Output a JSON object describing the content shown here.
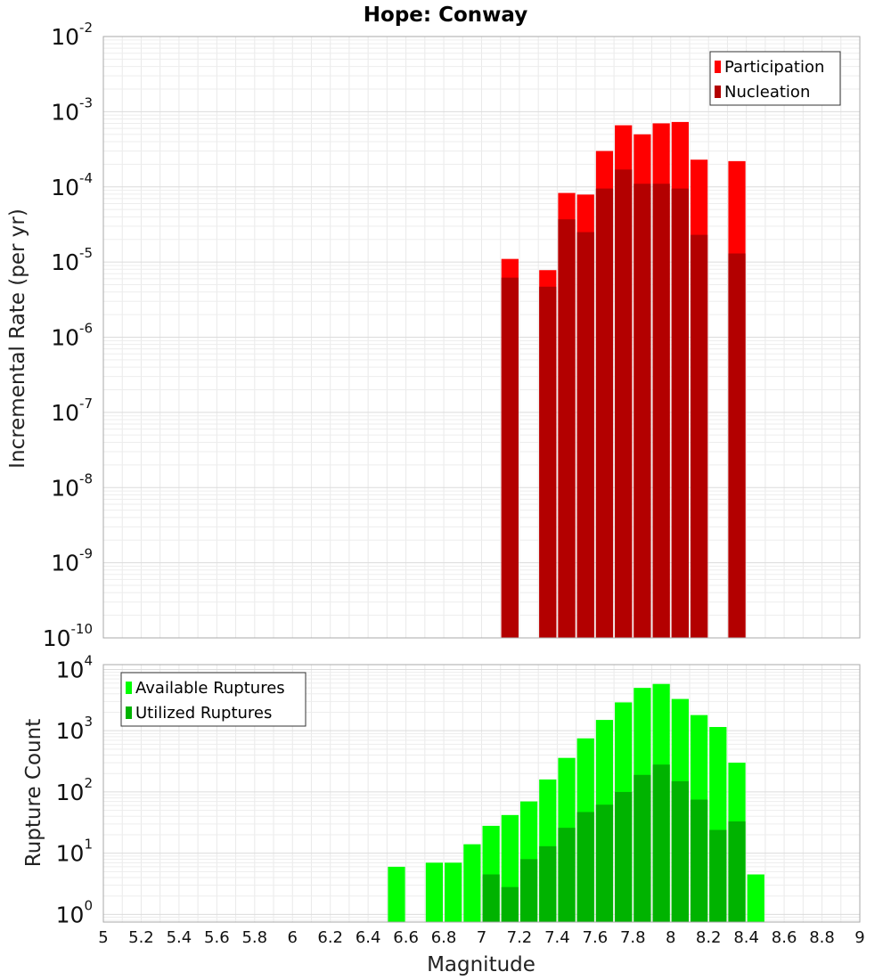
{
  "chart_data": [
    {
      "type": "bar",
      "title": "Hope: Conway",
      "ylabel": "Incremental Rate (per yr)",
      "yscale": "log",
      "ylim": [
        1e-10,
        0.01
      ],
      "xlim": [
        5,
        9
      ],
      "grid": true,
      "legend_position": "top-right",
      "bar_width": 0.1,
      "y_ticks": [
        {
          "base": "10",
          "exp": "-10",
          "value": 1e-10
        },
        {
          "base": "10",
          "exp": "-9",
          "value": 1e-09
        },
        {
          "base": "10",
          "exp": "-8",
          "value": 1e-08
        },
        {
          "base": "10",
          "exp": "-7",
          "value": 1e-07
        },
        {
          "base": "10",
          "exp": "-6",
          "value": 1e-06
        },
        {
          "base": "10",
          "exp": "-5",
          "value": 1e-05
        },
        {
          "base": "10",
          "exp": "-4",
          "value": 0.0001
        },
        {
          "base": "10",
          "exp": "-3",
          "value": 0.001
        },
        {
          "base": "10",
          "exp": "-2",
          "value": 0.01
        }
      ],
      "series": [
        {
          "name": "Participation",
          "color": "#ff0000",
          "points": [
            {
              "x": 7.15,
              "y": 1.1e-05
            },
            {
              "x": 7.35,
              "y": 7.8e-06
            },
            {
              "x": 7.45,
              "y": 8.3e-05
            },
            {
              "x": 7.55,
              "y": 7.9e-05
            },
            {
              "x": 7.65,
              "y": 0.0003
            },
            {
              "x": 7.75,
              "y": 0.00066
            },
            {
              "x": 7.85,
              "y": 0.0005
            },
            {
              "x": 7.95,
              "y": 0.0007
            },
            {
              "x": 8.05,
              "y": 0.00073
            },
            {
              "x": 8.15,
              "y": 0.00023
            },
            {
              "x": 8.35,
              "y": 0.00022
            }
          ]
        },
        {
          "name": "Nucleation",
          "color": "#b30000",
          "points": [
            {
              "x": 7.15,
              "y": 6.2e-06
            },
            {
              "x": 7.35,
              "y": 4.7e-06
            },
            {
              "x": 7.45,
              "y": 3.7e-05
            },
            {
              "x": 7.55,
              "y": 2.5e-05
            },
            {
              "x": 7.65,
              "y": 9.5e-05
            },
            {
              "x": 7.75,
              "y": 0.00017
            },
            {
              "x": 7.85,
              "y": 0.00011
            },
            {
              "x": 7.95,
              "y": 0.00011
            },
            {
              "x": 8.05,
              "y": 9.5e-05
            },
            {
              "x": 8.15,
              "y": 2.3e-05
            },
            {
              "x": 8.35,
              "y": 1.3e-05
            }
          ]
        }
      ]
    },
    {
      "type": "bar",
      "xlabel": "Magnitude",
      "ylabel": "Rupture Count",
      "yscale": "log",
      "ylim": [
        0.75,
        12000
      ],
      "xlim": [
        5,
        9
      ],
      "grid": true,
      "legend_position": "top-left",
      "bar_width": 0.1,
      "x_ticks": [
        "5",
        "5.2",
        "5.4",
        "5.6",
        "5.8",
        "6",
        "6.2",
        "6.4",
        "6.6",
        "6.8",
        "7",
        "7.2",
        "7.4",
        "7.6",
        "7.8",
        "8",
        "8.2",
        "8.4",
        "8.6",
        "8.8",
        "9"
      ],
      "y_ticks": [
        {
          "base": "10",
          "exp": "0",
          "value": 1
        },
        {
          "base": "10",
          "exp": "1",
          "value": 10
        },
        {
          "base": "10",
          "exp": "2",
          "value": 100
        },
        {
          "base": "10",
          "exp": "3",
          "value": 1000
        },
        {
          "base": "10",
          "exp": "4",
          "value": 10000
        }
      ],
      "series": [
        {
          "name": "Available Ruptures",
          "color": "#00ff00",
          "points": [
            {
              "x": 6.55,
              "y": 6
            },
            {
              "x": 6.75,
              "y": 7
            },
            {
              "x": 6.85,
              "y": 7
            },
            {
              "x": 6.95,
              "y": 14
            },
            {
              "x": 7.05,
              "y": 28
            },
            {
              "x": 7.15,
              "y": 42
            },
            {
              "x": 7.25,
              "y": 70
            },
            {
              "x": 7.35,
              "y": 160
            },
            {
              "x": 7.45,
              "y": 360
            },
            {
              "x": 7.55,
              "y": 750
            },
            {
              "x": 7.65,
              "y": 1500
            },
            {
              "x": 7.75,
              "y": 2900
            },
            {
              "x": 7.85,
              "y": 5000
            },
            {
              "x": 7.95,
              "y": 5800
            },
            {
              "x": 8.05,
              "y": 3300
            },
            {
              "x": 8.15,
              "y": 1800
            },
            {
              "x": 8.25,
              "y": 1150
            },
            {
              "x": 8.35,
              "y": 300
            },
            {
              "x": 8.45,
              "y": 4.5
            }
          ]
        },
        {
          "name": "Utilized Ruptures",
          "color": "#00b300",
          "points": [
            {
              "x": 7.05,
              "y": 4.5
            },
            {
              "x": 7.15,
              "y": 2.8
            },
            {
              "x": 7.25,
              "y": 8
            },
            {
              "x": 7.35,
              "y": 13
            },
            {
              "x": 7.45,
              "y": 26
            },
            {
              "x": 7.55,
              "y": 47
            },
            {
              "x": 7.65,
              "y": 62
            },
            {
              "x": 7.75,
              "y": 100
            },
            {
              "x": 7.85,
              "y": 190
            },
            {
              "x": 7.95,
              "y": 280
            },
            {
              "x": 8.05,
              "y": 150
            },
            {
              "x": 8.15,
              "y": 75
            },
            {
              "x": 8.25,
              "y": 24
            },
            {
              "x": 8.35,
              "y": 33
            }
          ]
        }
      ]
    }
  ]
}
